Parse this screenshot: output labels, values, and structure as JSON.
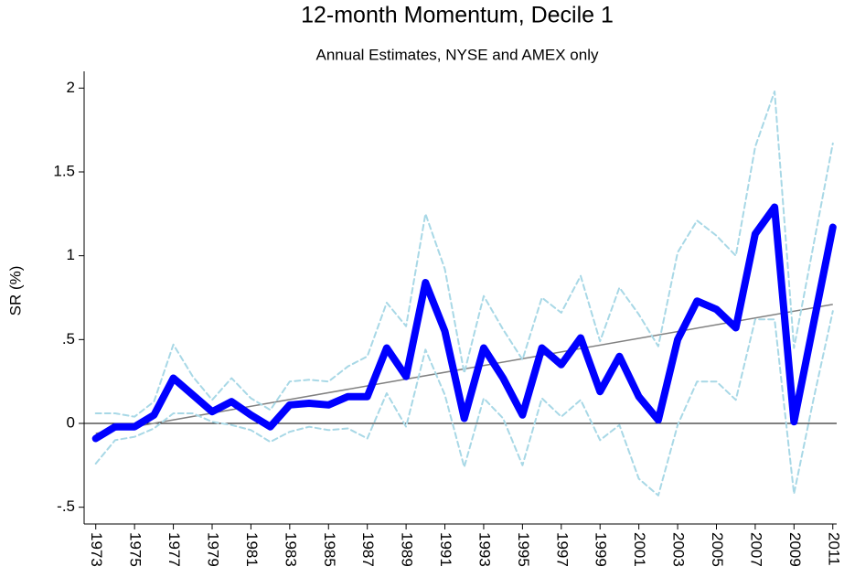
{
  "chart_data": {
    "type": "line",
    "title": "12-month Momentum, Decile 1",
    "subtitle": "Annual Estimates, NYSE and AMEX only",
    "y_label": "SR (%)",
    "x": [
      1973,
      1974,
      1975,
      1976,
      1977,
      1978,
      1979,
      1980,
      1981,
      1982,
      1983,
      1984,
      1985,
      1986,
      1987,
      1988,
      1989,
      1990,
      1991,
      1992,
      1993,
      1994,
      1995,
      1996,
      1997,
      1998,
      1999,
      2000,
      2001,
      2002,
      2003,
      2004,
      2005,
      2006,
      2007,
      2008,
      2009,
      2010,
      2011
    ],
    "series": [
      {
        "color": "#0000ff",
        "width": 8,
        "dash": false,
        "values": [
          -0.09,
          -0.02,
          -0.02,
          0.05,
          0.27,
          0.17,
          0.07,
          0.13,
          0.05,
          -0.02,
          0.11,
          0.12,
          0.11,
          0.16,
          0.16,
          0.45,
          0.28,
          0.84,
          0.55,
          0.03,
          0.45,
          0.27,
          0.05,
          0.45,
          0.35,
          0.51,
          0.19,
          0.4,
          0.16,
          0.02,
          0.5,
          0.73,
          0.68,
          0.57,
          1.13,
          1.29,
          0.01,
          0.59,
          1.17
        ]
      },
      {
        "color": "#a8d8e6",
        "width": 2,
        "dash": true,
        "values": [
          0.06,
          0.06,
          0.04,
          0.13,
          0.47,
          0.28,
          0.14,
          0.27,
          0.15,
          0.08,
          0.25,
          0.26,
          0.25,
          0.34,
          0.4,
          0.72,
          0.58,
          1.25,
          0.92,
          0.3,
          0.76,
          0.56,
          0.38,
          0.75,
          0.66,
          0.88,
          0.49,
          0.81,
          0.65,
          0.46,
          1.02,
          1.21,
          1.12,
          1.0,
          1.65,
          1.98,
          0.45,
          1.06,
          1.67
        ]
      },
      {
        "color": "#a8d8e6",
        "width": 2,
        "dash": true,
        "values": [
          -0.24,
          -0.1,
          -0.08,
          -0.03,
          0.06,
          0.06,
          0.01,
          -0.01,
          -0.04,
          -0.11,
          -0.05,
          -0.02,
          -0.04,
          -0.03,
          -0.09,
          0.18,
          -0.02,
          0.44,
          0.17,
          -0.26,
          0.15,
          0.03,
          -0.25,
          0.15,
          0.04,
          0.14,
          -0.1,
          -0.01,
          -0.33,
          -0.43,
          -0.01,
          0.25,
          0.25,
          0.14,
          0.62,
          0.62,
          -0.42,
          0.14,
          0.67
        ]
      }
    ],
    "trend": {
      "x": [
        1973,
        2011
      ],
      "values": [
        -0.06,
        0.71
      ],
      "color": "#808080"
    },
    "hline": 0,
    "xlim": [
      1972.4,
      2011.2
    ],
    "ylim": [
      -0.6,
      2.1
    ],
    "xticks": [
      1973,
      1975,
      1977,
      1979,
      1981,
      1983,
      1985,
      1987,
      1989,
      1991,
      1993,
      1995,
      1997,
      1999,
      2001,
      2003,
      2005,
      2007,
      2009,
      2011
    ],
    "yticks": [
      {
        "value": -0.5,
        "label": "-.5"
      },
      0,
      {
        "value": 0.5,
        "label": ".5"
      },
      1,
      1.5,
      2
    ],
    "grid": false
  }
}
